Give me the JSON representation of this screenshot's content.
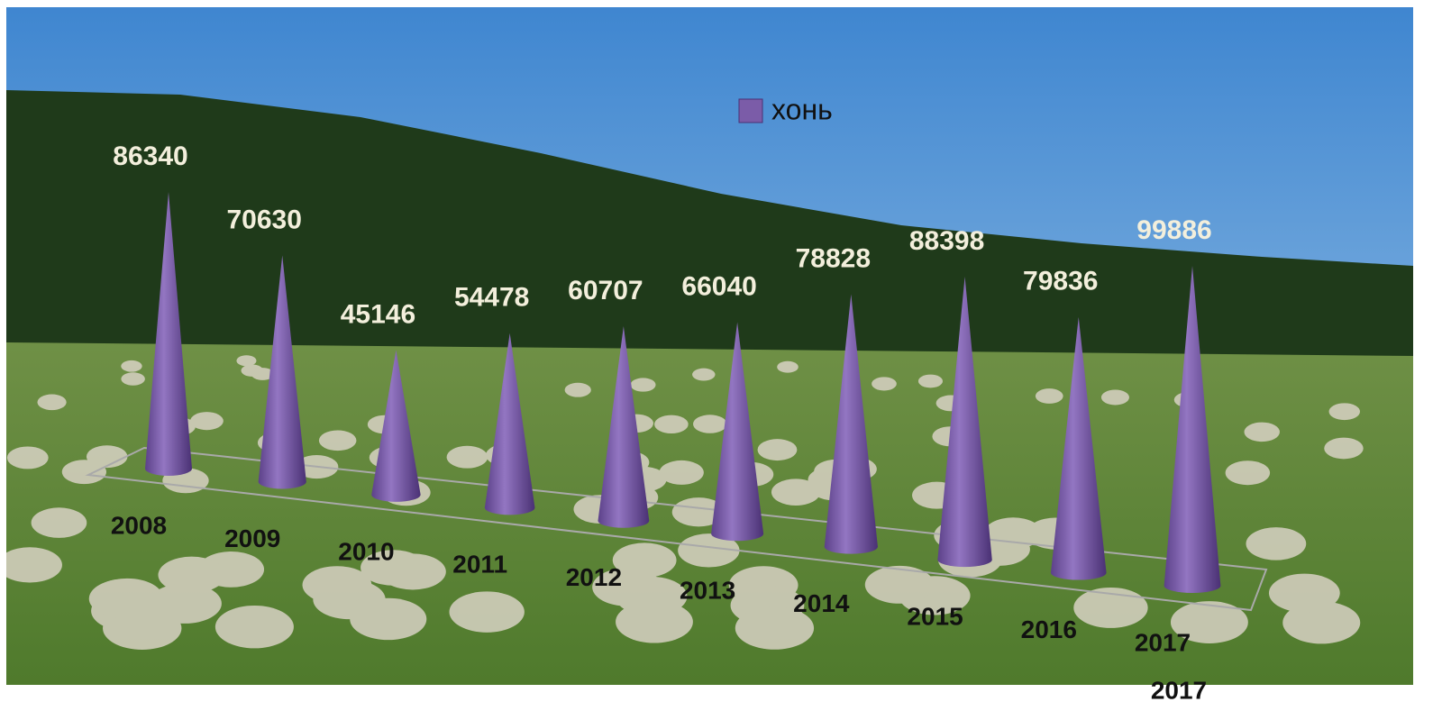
{
  "chart_data": {
    "type": "cone",
    "legend_label": "хонь",
    "color": "#7b5ca8",
    "categories": [
      "2008",
      "2009",
      "2010",
      "2011",
      "2012",
      "2013",
      "2014",
      "2015",
      "2016",
      "2017"
    ],
    "values": [
      86340,
      70630,
      45146,
      54478,
      60707,
      66040,
      78828,
      88398,
      79836,
      99886
    ],
    "caption": "2017"
  }
}
